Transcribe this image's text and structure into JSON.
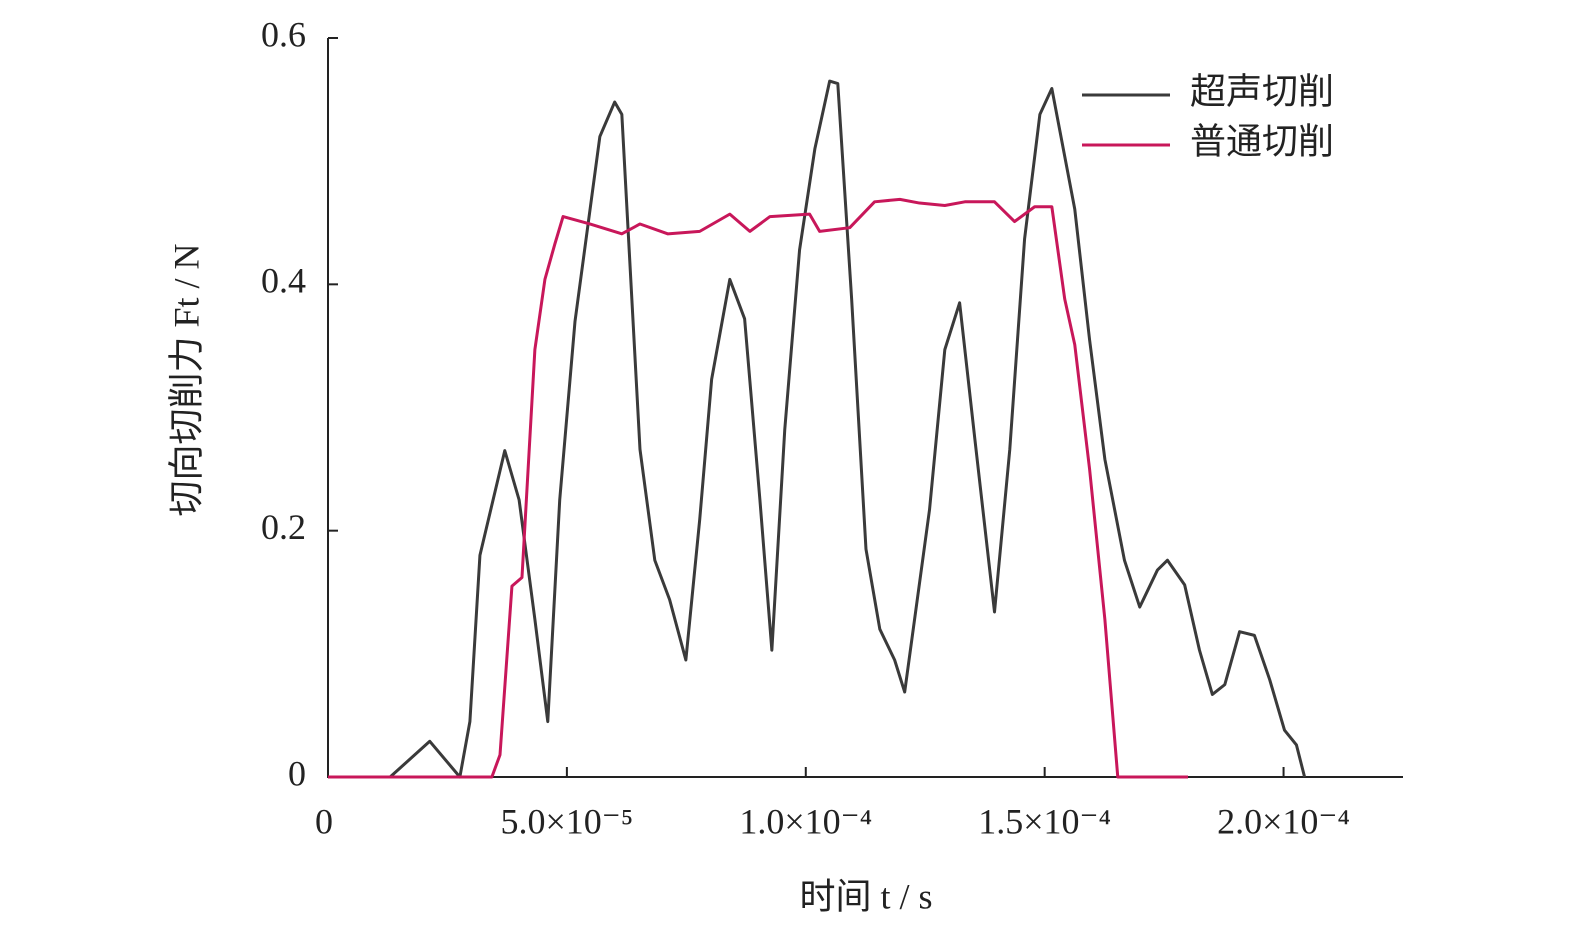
{
  "chart_data": {
    "type": "line",
    "xlabel": "时间 t / s",
    "ylabel": "切向切削力 Ft / N",
    "xlim": [
      0,
      0.000225
    ],
    "ylim": [
      0,
      0.6
    ],
    "xticks": [
      0,
      {
        "value": 5e-05,
        "label": "5.0×10⁻⁵"
      },
      {
        "value": 0.0001,
        "label": "1.0×10⁻⁴"
      },
      {
        "value": 0.00015,
        "label": "1.5×10⁻⁴"
      },
      {
        "value": 0.0002,
        "label": "2.0×10⁻⁴"
      }
    ],
    "yticks": [
      0,
      0.2,
      0.4,
      0.6
    ],
    "legend": "upper right",
    "series": [
      {
        "name": "超声切削",
        "color": "#3a3a3a",
        "x": [
          0,
          1.3e-05,
          2.13e-05,
          2.76e-05,
          2.97e-05,
          3.18e-05,
          3.7e-05,
          4e-05,
          4.33e-05,
          4.6e-05,
          4.85e-05,
          5.17e-05,
          5.69e-05,
          6e-05,
          6.15e-05,
          6.53e-05,
          6.84e-05,
          7.15e-05,
          7.49e-05,
          7.78e-05,
          8.03e-05,
          8.41e-05,
          8.72e-05,
          9.04e-05,
          9.29e-05,
          9.56e-05,
          9.87e-05,
          0.0001019,
          0.000105,
          0.0001067,
          0.0001096,
          0.0001126,
          0.0001155,
          0.0001186,
          0.0001207,
          0.0001259,
          0.0001291,
          0.0001322,
          0.0001354,
          0.0001395,
          0.0001427,
          0.0001458,
          0.000149,
          0.0001515,
          0.0001563,
          0.0001594,
          0.0001626,
          0.0001667,
          0.0001699,
          0.0001736,
          0.0001757,
          0.0001793,
          0.0001824,
          0.0001851,
          0.0001877,
          0.0001908,
          0.0001939,
          0.0001971,
          0.0002002,
          0.0002027,
          0.0002044
        ],
        "values": [
          0,
          0,
          0.029,
          0,
          0.045,
          0.18,
          0.265,
          0.225,
          0.128,
          0.045,
          0.225,
          0.37,
          0.52,
          0.548,
          0.538,
          0.266,
          0.176,
          0.144,
          0.095,
          0.209,
          0.323,
          0.404,
          0.372,
          0.225,
          0.103,
          0.282,
          0.428,
          0.51,
          0.565,
          0.563,
          0.388,
          0.185,
          0.12,
          0.095,
          0.069,
          0.217,
          0.347,
          0.385,
          0.274,
          0.134,
          0.266,
          0.437,
          0.538,
          0.559,
          0.461,
          0.355,
          0.258,
          0.176,
          0.138,
          0.168,
          0.176,
          0.156,
          0.103,
          0.067,
          0.075,
          0.118,
          0.115,
          0.079,
          0.038,
          0.026,
          0
        ]
      },
      {
        "name": "普通切削",
        "color": "#c8175a",
        "x": [
          0,
          3.43e-05,
          3.6e-05,
          3.85e-05,
          4.06e-05,
          4.33e-05,
          4.54e-05,
          4.75e-05,
          4.92e-05,
          5.48e-05,
          6.15e-05,
          6.53e-05,
          7.11e-05,
          7.78e-05,
          8.41e-05,
          8.83e-05,
          9.25e-05,
          0.0001008,
          0.0001029,
          0.0001092,
          0.0001144,
          0.0001197,
          0.0001238,
          0.0001291,
          0.0001333,
          0.0001395,
          0.0001437,
          0.0001479,
          0.0001515,
          0.0001542,
          0.0001563,
          0.0001594,
          0.0001626,
          0.0001653,
          0.00018
        ],
        "values": [
          0,
          0,
          0.018,
          0.155,
          0.162,
          0.347,
          0.404,
          0.433,
          0.455,
          0.449,
          0.441,
          0.449,
          0.441,
          0.443,
          0.457,
          0.443,
          0.455,
          0.457,
          0.443,
          0.446,
          0.467,
          0.469,
          0.466,
          0.464,
          0.467,
          0.467,
          0.451,
          0.463,
          0.463,
          0.388,
          0.351,
          0.25,
          0.128,
          0,
          0
        ]
      }
    ]
  }
}
